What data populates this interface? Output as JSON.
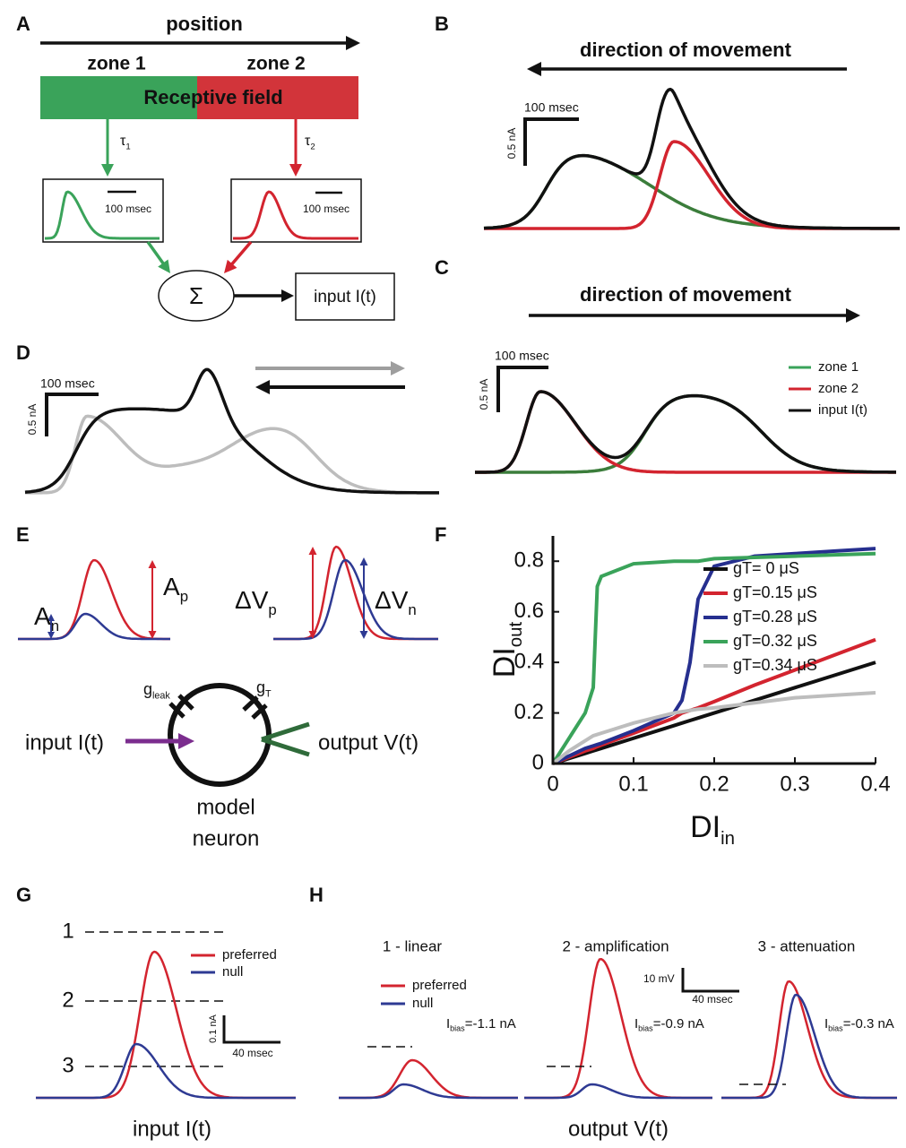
{
  "panel_labels": [
    "A",
    "B",
    "C",
    "D",
    "E",
    "F",
    "G",
    "H"
  ],
  "A": {
    "title": "position",
    "zone1": "zone 1",
    "zone2": "zone 2",
    "field": "Receptive field",
    "tau1": {
      "text": "τ",
      "sub": "1"
    },
    "tau2": {
      "text": "τ",
      "sub": "2"
    },
    "scale1": "100 msec",
    "scale2": "100 msec",
    "sum": "Σ",
    "output": "input I(t)"
  },
  "B": {
    "title": "direction of movement",
    "time": "100 msec",
    "amp": "0.5 nA"
  },
  "C": {
    "title": "direction of movement",
    "time": "100 msec",
    "amp": "0.5 nA",
    "legend": [
      "zone 1",
      "zone 2",
      "input I(t)"
    ]
  },
  "D": {
    "time": "100 msec",
    "amp": "0.5 nA"
  },
  "E": {
    "an": {
      "text": "A",
      "sub": "n"
    },
    "ap": {
      "text": "A",
      "sub": "p"
    },
    "dvp": {
      "text": "ΔV",
      "sub": "p"
    },
    "dvn": {
      "text": "ΔV",
      "sub": "n"
    },
    "gleak": {
      "text": "g",
      "sub": "leak"
    },
    "gt": {
      "text": "g",
      "sub": "T"
    },
    "input": "input I(t)",
    "output": "output V(t)",
    "neuron": [
      "model",
      "neuron"
    ]
  },
  "chart_data": {
    "type": "line",
    "xlabel": {
      "text": "DI",
      "sub": "in"
    },
    "ylabel": {
      "text": "DI",
      "sub": "out"
    },
    "x": [
      0,
      0.02,
      0.04,
      0.05,
      0.055,
      0.06,
      0.1,
      0.15,
      0.16,
      0.17,
      0.18,
      0.2,
      0.25,
      0.3,
      0.35,
      0.4
    ],
    "series": [
      {
        "name": "gT= 0 μS",
        "color": "#111111",
        "values": [
          0,
          0.02,
          0.04,
          0.05,
          0.055,
          0.06,
          0.1,
          0.15,
          0.16,
          0.17,
          0.18,
          0.2,
          0.25,
          0.3,
          0.35,
          0.4
        ]
      },
      {
        "name": "gT=0.15 μS",
        "color": "#d3242f",
        "values": [
          0,
          0.025,
          0.05,
          0.06,
          0.067,
          0.073,
          0.12,
          0.18,
          0.2,
          0.21,
          0.22,
          0.245,
          0.31,
          0.37,
          0.43,
          0.49
        ]
      },
      {
        "name": "gT=0.28 μS",
        "color": "#262f8f",
        "values": [
          0,
          0.03,
          0.06,
          0.07,
          0.075,
          0.08,
          0.13,
          0.2,
          0.25,
          0.4,
          0.65,
          0.78,
          0.82,
          0.83,
          0.84,
          0.85
        ]
      },
      {
        "name": "gT=0.32 μS",
        "color": "#3aa35a",
        "values": [
          0,
          0.1,
          0.2,
          0.3,
          0.7,
          0.74,
          0.79,
          0.8,
          0.8,
          0.8,
          0.8,
          0.81,
          0.815,
          0.82,
          0.825,
          0.83
        ]
      },
      {
        "name": "gT=0.34 μS",
        "color": "#bdbdbd",
        "values": [
          0,
          0.05,
          0.09,
          0.11,
          0.115,
          0.12,
          0.16,
          0.2,
          0.205,
          0.21,
          0.215,
          0.22,
          0.24,
          0.26,
          0.27,
          0.28
        ]
      }
    ],
    "xlim": [
      0,
      0.4
    ],
    "ylim": [
      0,
      0.9
    ],
    "xticks": [
      0,
      0.1,
      0.2,
      0.3,
      0.4
    ],
    "yticks": [
      0,
      0.2,
      0.4,
      0.6,
      0.8
    ],
    "grid": false
  },
  "G": {
    "levels": [
      "1",
      "2",
      "3"
    ],
    "legend": [
      "preferred",
      "null"
    ],
    "amp": "0.1 nA",
    "time": "40 msec",
    "caption": "input I(t)"
  },
  "H": {
    "titles": [
      "1 - linear",
      "2 - amplification",
      "3 - attenuation"
    ],
    "legend": [
      "preferred",
      "null"
    ],
    "amp": "10 mV",
    "time": "40 msec",
    "bias": [
      {
        "text": "I",
        "sub": "bias",
        "rest": "=-1.1 nA"
      },
      {
        "text": "I",
        "sub": "bias",
        "rest": "=-0.9 nA"
      },
      {
        "text": "I",
        "sub": "bias",
        "rest": "=-0.3 nA"
      }
    ],
    "caption": "output V(t)"
  }
}
